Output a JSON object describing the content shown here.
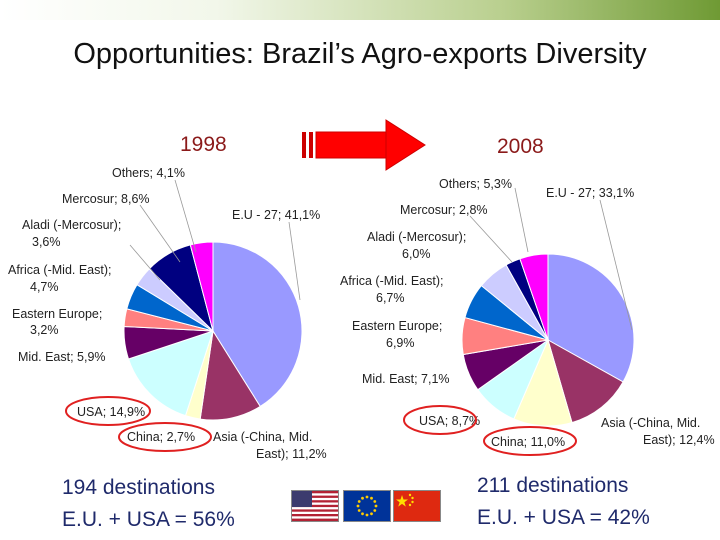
{
  "slide": {
    "title": "Opportunities: Brazil’s Agro-exports Diversity",
    "year_left": "1998",
    "year_right": "2008",
    "left_destinations": "194 destinations",
    "left_share": "E.U. + USA = 56%",
    "right_destinations": "211 destinations",
    "right_share": "E.U. + USA = 42%"
  },
  "flags": [
    "usa-flag-icon",
    "eu-flag-icon",
    "china-flag-icon"
  ],
  "chart_data": [
    {
      "type": "pie",
      "title": "1998",
      "slices": [
        {
          "label": "E.U - 27; 41,1%",
          "value": 41.1,
          "color": "#9999ff"
        },
        {
          "label": "Asia (-China, Mid. East); 11,2%",
          "value": 11.2,
          "color": "#993366"
        },
        {
          "label": "China; 2,7%",
          "value": 2.7,
          "color": "#ffffcc"
        },
        {
          "label": "USA; 14,9%",
          "value": 14.9,
          "color": "#ccffff"
        },
        {
          "label": "Mid. East; 5,9%",
          "value": 5.9,
          "color": "#660066"
        },
        {
          "label": "Eastern Europe; 3,2%",
          "value": 3.2,
          "color": "#ff8080"
        },
        {
          "label": "Africa (-Mid. East); 4,7%",
          "value": 4.7,
          "color": "#0066cc"
        },
        {
          "label": "Aladi (-Mercosur); 3,6%",
          "value": 3.6,
          "color": "#ccccff"
        },
        {
          "label": "Mercosur; 8,6%",
          "value": 8.6,
          "color": "#000080"
        },
        {
          "label": "Others; 4,1%",
          "value": 4.1,
          "color": "#ff00ff"
        }
      ]
    },
    {
      "type": "pie",
      "title": "2008",
      "slices": [
        {
          "label": "E.U - 27; 33,1%",
          "value": 33.1,
          "color": "#9999ff"
        },
        {
          "label": "Asia (-China, Mid. East); 12,4%",
          "value": 12.4,
          "color": "#993366"
        },
        {
          "label": "China; 11,0%",
          "value": 11.0,
          "color": "#ffffcc"
        },
        {
          "label": "USA; 8,7%",
          "value": 8.7,
          "color": "#ccffff"
        },
        {
          "label": "Mid. East; 7,1%",
          "value": 7.1,
          "color": "#660066"
        },
        {
          "label": "Eastern Europe; 6,9%",
          "value": 6.9,
          "color": "#ff8080"
        },
        {
          "label": "Africa (-Mid. East); 6,7%",
          "value": 6.7,
          "color": "#0066cc"
        },
        {
          "label": "Aladi (-Mercosur); 6,0%",
          "value": 6.0,
          "color": "#ccccff"
        },
        {
          "label": "Mercosur; 2,8%",
          "value": 2.8,
          "color": "#000080"
        },
        {
          "label": "Others; 5,3%",
          "value": 5.3,
          "color": "#ff00ff"
        }
      ]
    }
  ]
}
